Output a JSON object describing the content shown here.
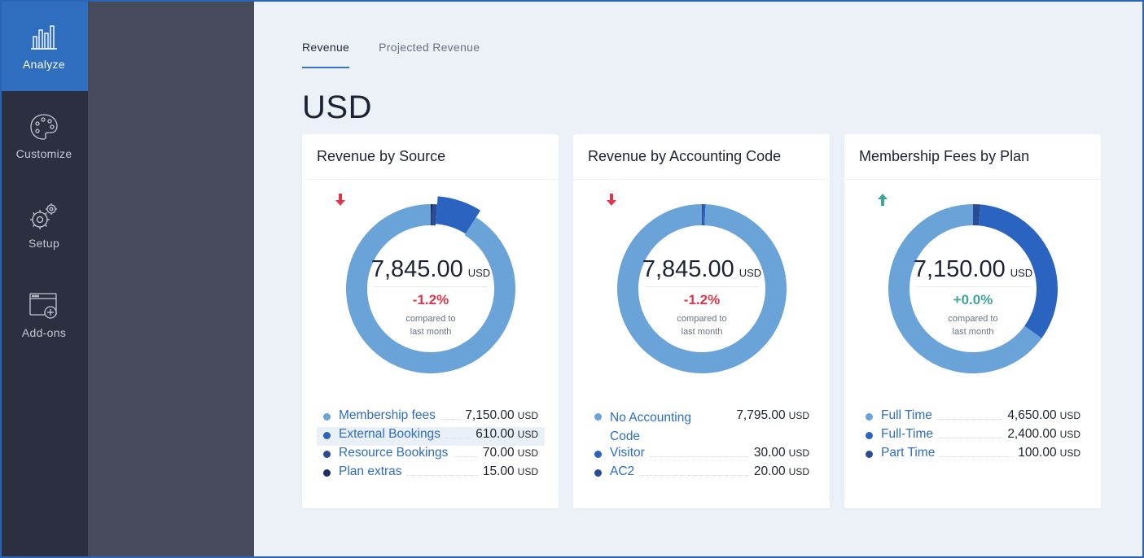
{
  "nav": [
    {
      "label": "Analyze",
      "icon": "bar-chart-icon",
      "active": true
    },
    {
      "label": "Customize",
      "icon": "palette-icon",
      "active": false
    },
    {
      "label": "Setup",
      "icon": "gears-icon",
      "active": false
    },
    {
      "label": "Add-ons",
      "icon": "window-add-icon",
      "active": false
    }
  ],
  "tabs": [
    {
      "label": "Revenue",
      "active": true
    },
    {
      "label": "Projected Revenue",
      "active": false
    }
  ],
  "currency_heading": "USD",
  "colors": {
    "accent": "#2f6dbf",
    "light_blue": "#6aa3d8",
    "mid_blue": "#2b63c1",
    "dark_blue": "#2a4c95",
    "navy": "#1d2d66",
    "negative": "#e0364b",
    "positive": "#3fa59b"
  },
  "cards": [
    {
      "title": "Revenue by Source",
      "total": "7,845.00",
      "unit": "USD",
      "delta": "-1.2%",
      "delta_direction": "down",
      "compare_line1": "compared to",
      "compare_line2": "last month",
      "items": [
        {
          "label": "Membership fees",
          "value": "7,150.00",
          "unit": "USD",
          "amount": 7150,
          "color": "#6aa3d8",
          "highlight": false
        },
        {
          "label": "External Bookings",
          "value": "610.00",
          "unit": "USD",
          "amount": 610,
          "color": "#2b63c1",
          "highlight": true
        },
        {
          "label": "Resource Bookings",
          "value": "70.00",
          "unit": "USD",
          "amount": 70,
          "color": "#2a4c95",
          "highlight": false
        },
        {
          "label": "Plan extras",
          "value": "15.00",
          "unit": "USD",
          "amount": 15,
          "color": "#1d2d66",
          "highlight": false
        }
      ]
    },
    {
      "title": "Revenue by Accounting Code",
      "total": "7,845.00",
      "unit": "USD",
      "delta": "-1.2%",
      "delta_direction": "down",
      "compare_line1": "compared to",
      "compare_line2": "last month",
      "items": [
        {
          "label": "No Accounting Code",
          "value": "7,795.00",
          "unit": "USD",
          "amount": 7795,
          "color": "#6aa3d8",
          "highlight": false
        },
        {
          "label": "Visitor",
          "value": "30.00",
          "unit": "USD",
          "amount": 30,
          "color": "#2b63c1",
          "highlight": false
        },
        {
          "label": "AC2",
          "value": "20.00",
          "unit": "USD",
          "amount": 20,
          "color": "#2a4c95",
          "highlight": false
        }
      ]
    },
    {
      "title": "Membership Fees by Plan",
      "total": "7,150.00",
      "unit": "USD",
      "delta": "+0.0%",
      "delta_direction": "up",
      "compare_line1": "compared to",
      "compare_line2": "last month",
      "items": [
        {
          "label": "Full Time",
          "value": "4,650.00",
          "unit": "USD",
          "amount": 4650,
          "color": "#6aa3d8",
          "highlight": false
        },
        {
          "label": "Full-Time",
          "value": "2,400.00",
          "unit": "USD",
          "amount": 2400,
          "color": "#2b63c1",
          "highlight": false
        },
        {
          "label": "Part Time",
          "value": "100.00",
          "unit": "USD",
          "amount": 100,
          "color": "#2a4c95",
          "highlight": false
        }
      ]
    }
  ]
}
